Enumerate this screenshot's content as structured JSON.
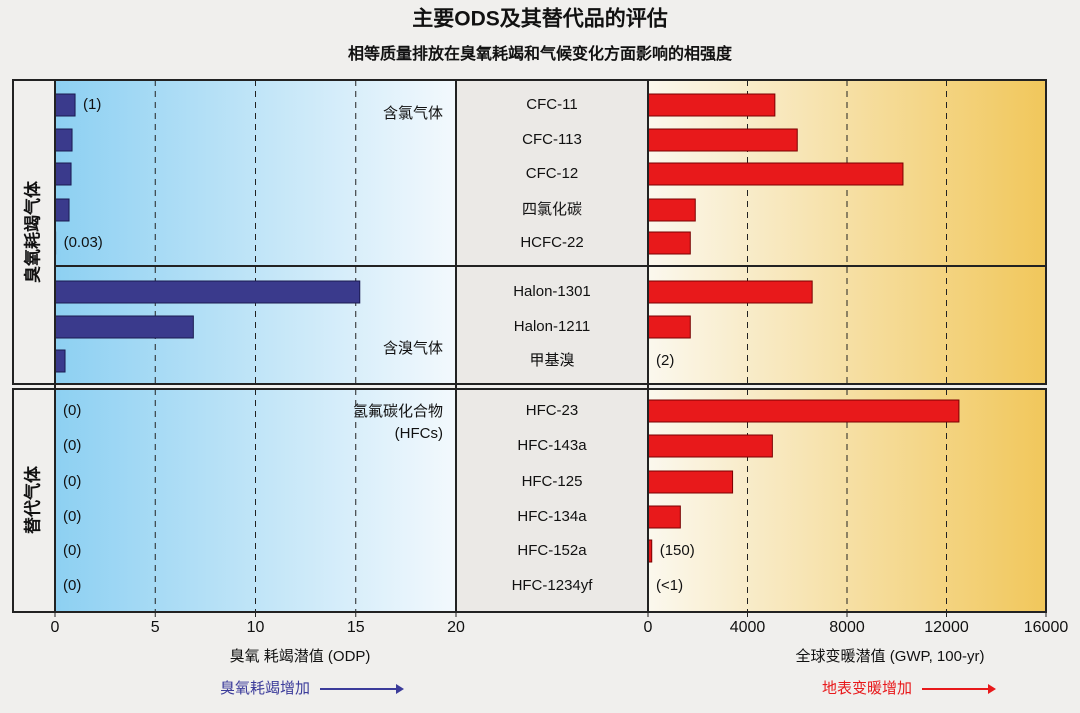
{
  "chart_data": [
    {
      "type": "bar",
      "orientation": "horizontal",
      "title": "主要ODS及其替代品的评估",
      "subtitle": "相等质量排放在臭氧耗竭和气候变化方面影响的相强度",
      "group_labels": [
        "臭氧耗竭气体",
        "替代气体"
      ],
      "annotations": [
        "含氯气体",
        "含溴气体",
        "氢氟碳化合物",
        "(HFCs)"
      ],
      "categories": [
        "CFC-11",
        "CFC-113",
        "CFC-12",
        "四氯化碳",
        "HCFC-22",
        "Halon-1301",
        "Halon-1211",
        "甲基溴",
        "HFC-23",
        "HFC-143a",
        "HFC-125",
        "HFC-134a",
        "HFC-152a",
        "HFC-1234yf"
      ],
      "values": [
        1,
        0.85,
        0.8,
        0.7,
        0.03,
        15.2,
        6.9,
        0.5,
        0,
        0,
        0,
        0,
        0,
        0
      ],
      "value_labels": [
        "(1)",
        null,
        null,
        null,
        "(0.03)",
        null,
        null,
        null,
        "(0)",
        "(0)",
        "(0)",
        "(0)",
        "(0)",
        "(0)"
      ],
      "color": "#3a3a8c",
      "xlim": [
        0,
        20
      ],
      "xticks": [
        0,
        5,
        10,
        15,
        20
      ],
      "grid": true,
      "xlabel": "臭氧 耗竭潜值 (ODP)",
      "arrow_label": "臭氧耗竭增加"
    },
    {
      "type": "bar",
      "orientation": "horizontal",
      "values": [
        5100,
        6000,
        10250,
        1900,
        1700,
        6600,
        1700,
        2,
        12500,
        5000,
        3400,
        1300,
        150,
        0.5
      ],
      "value_labels": [
        null,
        null,
        null,
        null,
        null,
        null,
        null,
        "(2)",
        null,
        null,
        null,
        null,
        "(150)",
        "(<1)"
      ],
      "color": "#e8191b",
      "xlim": [
        0,
        16000
      ],
      "xticks": [
        0,
        4000,
        8000,
        12000,
        16000
      ],
      "grid": true,
      "xlabel": "全球变暖潜值 (GWP, 100-yr)",
      "arrow_label": "地表变暖增加"
    }
  ]
}
